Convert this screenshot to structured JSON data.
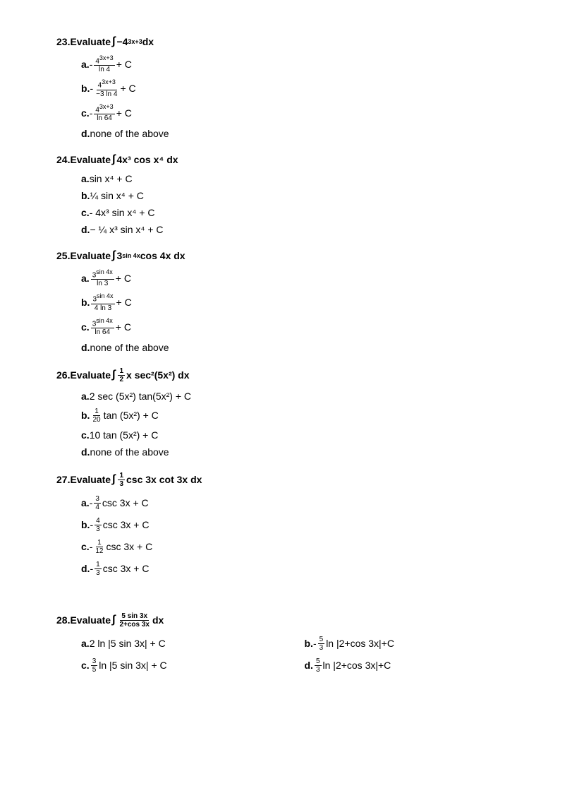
{
  "questions": [
    {
      "number": "23.",
      "stem_prefix": "Evaluate ",
      "stem_integral": "∫",
      "stem_expr": "−4",
      "stem_sup": "3x+3",
      "stem_suffix": " dx",
      "options": [
        {
          "label": "a.",
          "prefix": "- ",
          "num": "4",
          "num_sup": "3x+3",
          "den": "ln 4",
          "suffix": " + C"
        },
        {
          "label": "b.",
          "prefix": "- ",
          "num": "4",
          "num_sup": "3x+3",
          "den": "−3 ln 4",
          "suffix": " + C"
        },
        {
          "label": "c.",
          "prefix": " - ",
          "num": "4",
          "num_sup": "3x+3",
          "den": "ln 64",
          "suffix": " + C"
        },
        {
          "label": "d.",
          "text": " none of the above"
        }
      ]
    },
    {
      "number": "24.",
      "stem_prefix": "Evaluate  ",
      "stem_integral": "∫",
      "stem_expr": "4x³ cos x⁴ dx",
      "options": [
        {
          "label": "a.",
          "text": "  sin x⁴ + C"
        },
        {
          "label": "b.",
          "text": " ¼ sin x⁴ + C"
        },
        {
          "label": "c.",
          "text": " - 4x³ sin x⁴ + C"
        },
        {
          "label": "d.",
          "text": " − ¼ x³ sin x⁴ + C"
        }
      ]
    },
    {
      "number": "25.",
      "stem_prefix": "Evaluate ",
      "stem_integral": "∫",
      "stem_expr": " 3",
      "stem_sup": "sin 4x",
      "stem_suffix": " cos 4x dx",
      "options": [
        {
          "label": "a.",
          "prefix": " ",
          "num": "3",
          "num_sup": "sin 4x",
          "den": "ln 3",
          "suffix": " + C"
        },
        {
          "label": "b.",
          "prefix": " ",
          "num": "3",
          "num_sup": "sin 4x",
          "den": "4 ln 3",
          "suffix": "+ C"
        },
        {
          "label": "c.",
          "prefix": " ",
          "num": "3",
          "num_sup": "sin 4x",
          "den": "ln 64",
          "suffix": " + C"
        },
        {
          "label": "d.",
          "text": " none of the above"
        }
      ]
    },
    {
      "number": "26.",
      "stem_prefix": "Evaluate ",
      "stem_integral": "∫",
      "stem_frac_num": "1",
      "stem_frac_den": "2",
      "stem_suffix": "x sec²(5x²) dx",
      "options": [
        {
          "label": "a.",
          "text": " 2 sec (5x²) tan(5x²) + C"
        },
        {
          "label": "b.",
          "prefix": " ",
          "num": "1",
          "den": "20",
          "suffix": " tan (5x²) + C"
        },
        {
          "label": "c.",
          "text": " 10 tan (5x²) + C"
        },
        {
          "label": "d.",
          "text": " none of the above"
        }
      ]
    },
    {
      "number": "27.",
      "stem_prefix": "Evaluate  ",
      "stem_integral": "∫",
      "stem_frac_num": "1",
      "stem_frac_den": "3",
      "stem_suffix": "csc 3x cot 3x  dx",
      "options": [
        {
          "label": "a.",
          "prefix": " - ",
          "num": "3",
          "den": "4",
          "suffix": " csc 3x + C"
        },
        {
          "label": "b.",
          "prefix": " - ",
          "num": "4",
          "den": "3",
          "suffix": " csc 3x + C"
        },
        {
          "label": "c.",
          "prefix": " - ",
          "num": "1",
          "den": "12",
          "suffix": " csc 3x + C"
        },
        {
          "label": "d.",
          "prefix": " - ",
          "num": "1",
          "den": "3",
          "suffix": " csc 3x + C"
        }
      ]
    },
    {
      "number": "28.",
      "stem_prefix": "Evaluate  ",
      "stem_integral": "∫",
      "stem_frac_num": "5 sin 3x",
      "stem_frac_den": "2+cos 3x",
      "stem_suffix": " dx",
      "two_col": true,
      "options": [
        {
          "label": "a.",
          "text": " 2 ln |5 sin 3x| + C"
        },
        {
          "label": "b.",
          "prefix": "- ",
          "num": "5",
          "den": "3",
          "suffix": " ln |2+cos 3x|+C"
        },
        {
          "label": "c.",
          "prefix": " ",
          "num": "3",
          "den": "5",
          "suffix": " ln |5 sin 3x| + C"
        },
        {
          "label": "d.",
          "prefix": " ",
          "num": "5",
          "den": "3",
          "suffix": " ln |2+cos 3x|+C"
        }
      ]
    }
  ]
}
